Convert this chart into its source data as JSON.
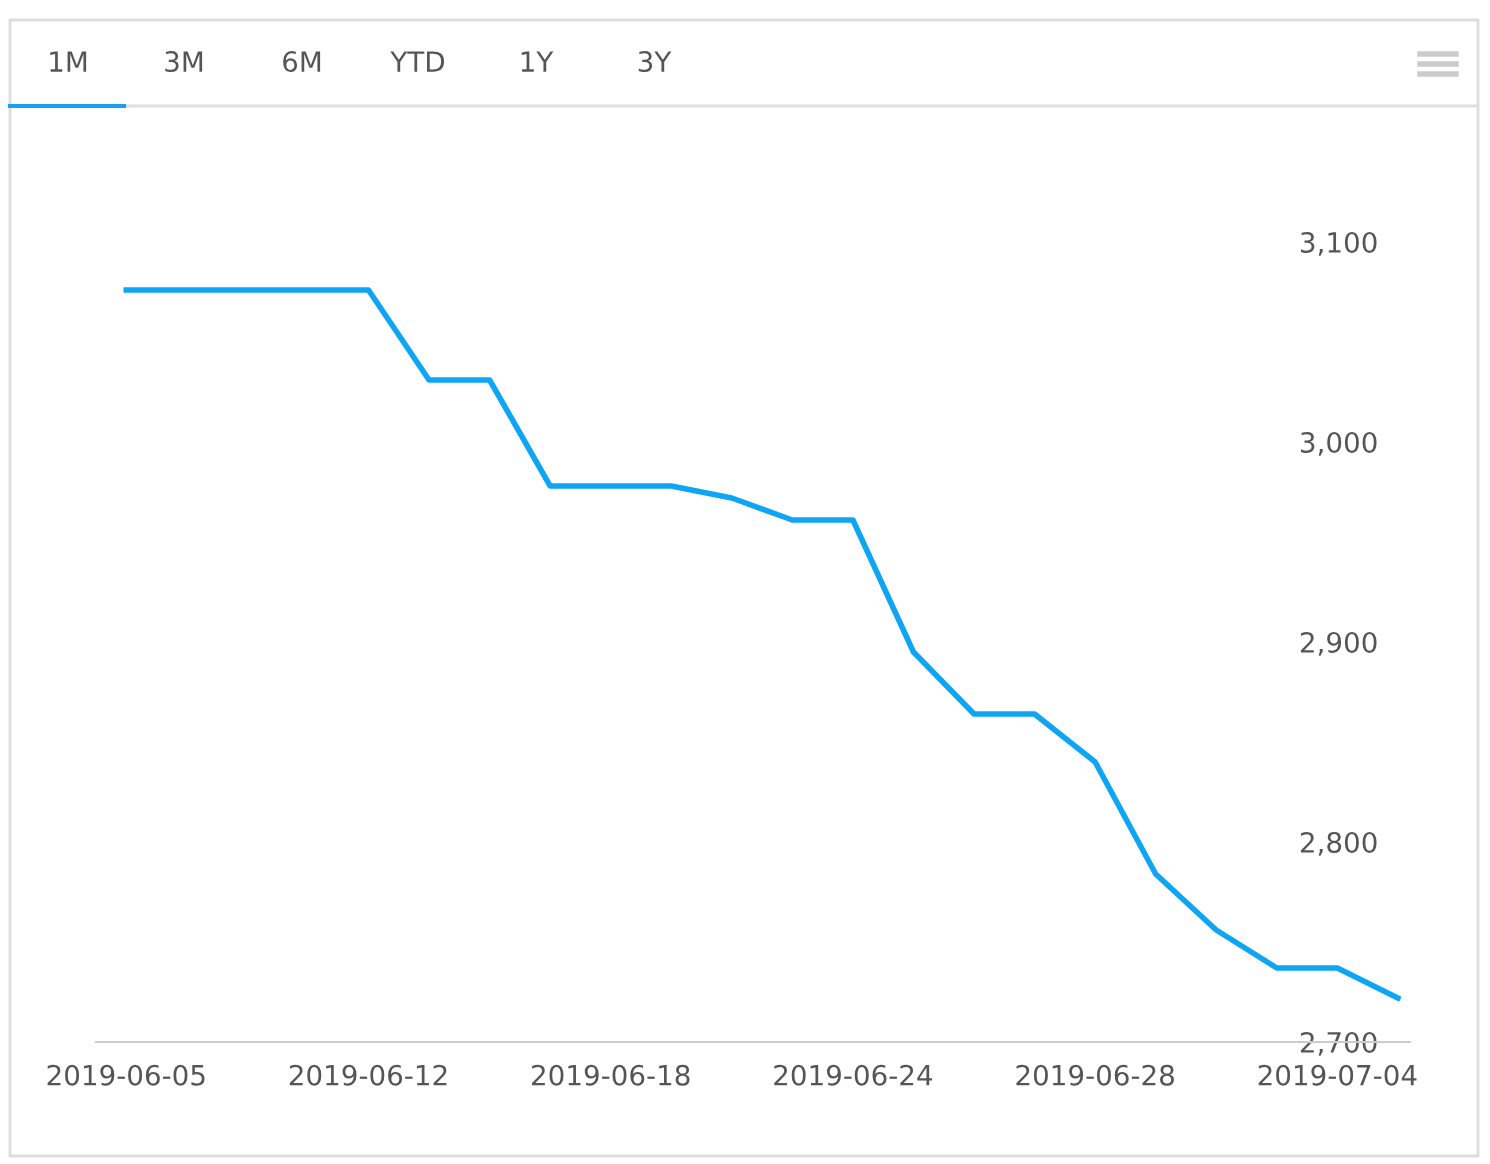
{
  "chart_data": {
    "type": "line",
    "categories": [
      "2019-06-05",
      null,
      null,
      null,
      "2019-06-12",
      null,
      null,
      null,
      "2019-06-18",
      null,
      null,
      null,
      "2019-06-24",
      null,
      null,
      null,
      "2019-06-28",
      null,
      null,
      null,
      "2019-07-04",
      null
    ],
    "series": [
      {
        "color": "#0ea5f5",
        "values": [
          3076,
          3076,
          3076,
          3076,
          3076,
          3031,
          3031,
          2978,
          2978,
          2978,
          2972,
          2961,
          2961,
          2895,
          2864,
          2864,
          2840,
          2784,
          2756,
          2737,
          2737,
          2722
        ]
      }
    ],
    "ylim": [
      2700,
      3100
    ],
    "yticks": [
      {
        "value": 2700,
        "label": "2,700"
      },
      {
        "value": 2800,
        "label": "2,800"
      },
      {
        "value": 2900,
        "label": "2,900"
      },
      {
        "value": 3000,
        "label": "3,000"
      },
      {
        "value": 3100,
        "label": "3,100"
      }
    ],
    "grid": false,
    "marker": "none",
    "line_style": "solid",
    "annotations": [
      "1M",
      "3M",
      "6M",
      "YTD",
      "1Y",
      "3Y"
    ]
  }
}
